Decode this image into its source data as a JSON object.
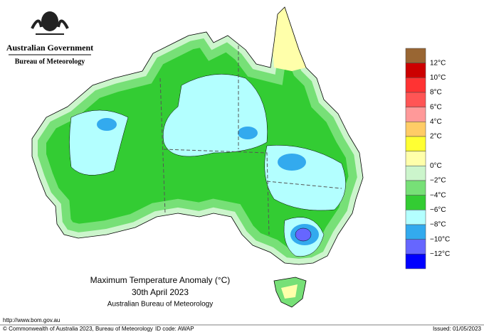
{
  "header": {
    "government": "Australian Government",
    "agency": "Bureau of Meteorology"
  },
  "map": {
    "title": "Maximum Temperature Anomaly (°C)",
    "date": "30th April 2023",
    "source": "Australian Bureau of Meteorology"
  },
  "legend": {
    "colors": [
      "#996633",
      "#cc0000",
      "#ff3333",
      "#ff5555",
      "#ff9999",
      "#ffcc66",
      "#ffff33",
      "#ffffaa",
      "#ccf5cc",
      "#77e077",
      "#33cc33",
      "#b3ffff",
      "#33aaee",
      "#6666ff",
      "#0000ff"
    ],
    "labels": [
      "12°C",
      "10°C",
      "8°C",
      "6°C",
      "4°C",
      "2°C",
      "0°C",
      "−2°C",
      "−4°C",
      "−6°C",
      "−8°C",
      "−10°C",
      "−12°C"
    ]
  },
  "footer": {
    "url": "http://www.bom.gov.au",
    "copyright": "© Commonwealth of Australia 2023, Bureau of Meteorology",
    "id_code": "ID code: AWAP",
    "issued": "Issued: 01/05/2023"
  }
}
